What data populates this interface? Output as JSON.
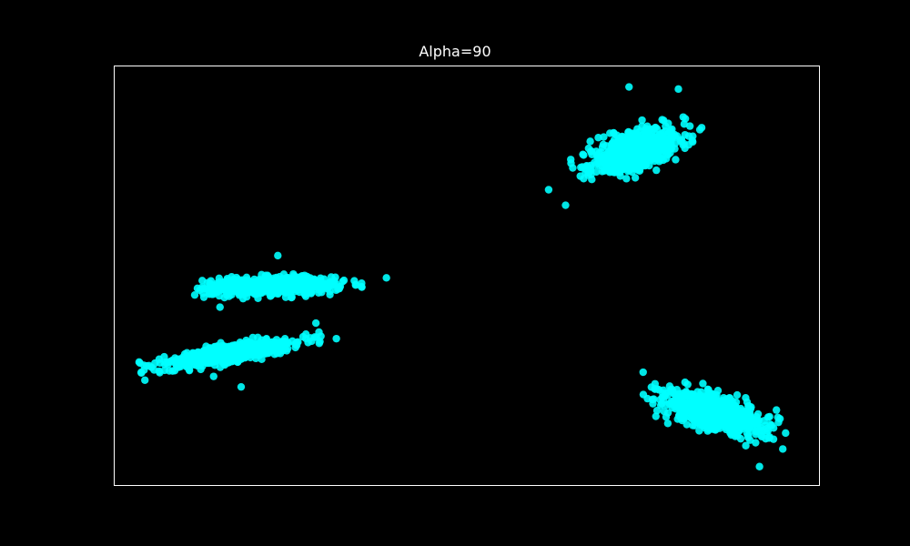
{
  "chart_data": {
    "type": "scatter",
    "title": "Alpha=90",
    "xlabel": "",
    "ylabel": "",
    "xlim": [
      0,
      100
    ],
    "ylim": [
      0,
      100
    ],
    "axis_ticks": false,
    "grid": false,
    "legend": "none",
    "background_color": "#000000",
    "axis_color": "#ffffff",
    "point_color": "#00ffff",
    "point_alpha": 0.9,
    "series": [
      {
        "name": "cluster-top-right",
        "center": [
          74,
          80
        ],
        "spread": [
          3.6,
          2.0
        ],
        "rotation_deg": 38,
        "count": 700,
        "outliers": [
          [
            61.6,
            70.5
          ],
          [
            64.0,
            66.8
          ],
          [
            73.0,
            95.0
          ],
          [
            83.3,
            85.3
          ],
          [
            80.0,
            94.5
          ]
        ]
      },
      {
        "name": "cluster-mid-left",
        "center": [
          22.5,
          47.5
        ],
        "spread": [
          4.5,
          1.0
        ],
        "rotation_deg": 2,
        "count": 700,
        "outliers": [
          [
            38.6,
            49.5
          ],
          [
            11.8,
            47.0
          ],
          [
            23.2,
            54.8
          ],
          [
            15.0,
            42.5
          ]
        ]
      },
      {
        "name": "cluster-lower-left",
        "center": [
          16.5,
          31.5
        ],
        "spread": [
          4.8,
          1.0
        ],
        "rotation_deg": 16,
        "count": 700,
        "outliers": [
          [
            31.5,
            35.0
          ],
          [
            18.0,
            23.5
          ],
          [
            4.6,
            28.5
          ],
          [
            28.6,
            38.7
          ],
          [
            14.1,
            26.0
          ]
        ]
      },
      {
        "name": "cluster-bottom-right",
        "center": [
          85,
          17.5
        ],
        "spread": [
          3.8,
          1.9
        ],
        "rotation_deg": -33,
        "count": 700,
        "outliers": [
          [
            91.5,
            4.5
          ],
          [
            95.2,
            12.5
          ],
          [
            75.0,
            27.0
          ],
          [
            94.8,
            8.7
          ],
          [
            78.5,
            14.8
          ]
        ]
      }
    ]
  }
}
